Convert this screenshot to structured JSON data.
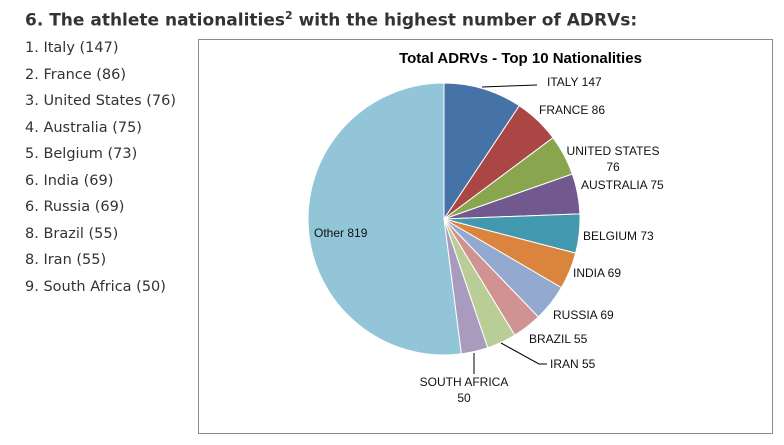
{
  "heading": {
    "text": "6.  The athlete nationalities",
    "sup": "2",
    "tail": " with the highest number of ADRVs:"
  },
  "list": [
    "1. Italy (147)",
    "2. France (86)",
    "3. United States (76)",
    "4. Australia (75)",
    "5. Belgium (73)",
    "6. India (69)",
    "6. Russia (69)",
    "8. Brazil (55)",
    "8. Iran (55)",
    "9. South Africa (50)"
  ],
  "chart_data": {
    "type": "pie",
    "title": "Total ADRVs - Top 10 Nationalities",
    "categories": [
      "ITALY",
      "FRANCE",
      "UNITED STATES",
      "AUSTRALIA",
      "BELGIUM",
      "INDIA",
      "RUSSIA",
      "BRAZIL",
      "IRAN",
      "SOUTH AFRICA",
      "Other"
    ],
    "values": [
      147,
      86,
      76,
      75,
      73,
      69,
      69,
      55,
      55,
      50,
      819
    ],
    "colors": [
      "#4572A7",
      "#AA4643",
      "#89A54E",
      "#71588F",
      "#4198AF",
      "#DB843D",
      "#93A9CF",
      "#D19392",
      "#B9CD96",
      "#A99BBD",
      "#92C5D7"
    ],
    "labels": [
      "ITALY 147",
      "FRANCE 86",
      "UNITED STATES 76",
      "AUSTRALIA 75",
      "BELGIUM 73",
      "INDIA 69",
      "RUSSIA 69",
      "BRAZIL 55",
      "IRAN 55",
      "SOUTH AFRICA 50",
      "Other 819"
    ],
    "start": "top",
    "direction": "clockwise",
    "legend": "none"
  }
}
